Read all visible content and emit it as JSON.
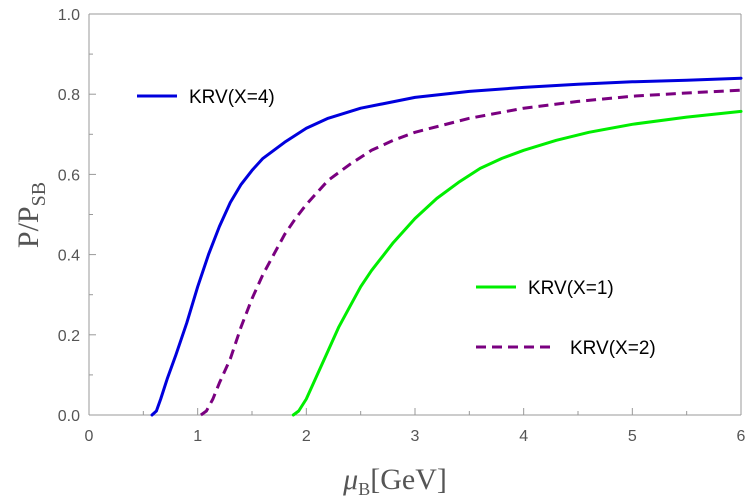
{
  "chart_data": {
    "type": "line",
    "xlabel": {
      "symbol": "μ",
      "sub": "B",
      "rest": "[GeV]"
    },
    "ylabel": {
      "main": "P/P",
      "sub": "SB"
    },
    "xlim": [
      0,
      6
    ],
    "ylim": [
      0,
      1
    ],
    "x_ticks": [
      "0",
      "1",
      "2",
      "3",
      "4",
      "5",
      "6"
    ],
    "y_ticks": [
      "0.0",
      "0.2",
      "0.4",
      "0.6",
      "0.8",
      "1.0"
    ],
    "grid": false,
    "series": [
      {
        "name": "KRV(X=4)",
        "color": "#0000dd",
        "dash": "solid",
        "points": [
          [
            0.58,
            0.0
          ],
          [
            0.62,
            0.01
          ],
          [
            0.66,
            0.04
          ],
          [
            0.72,
            0.09
          ],
          [
            0.8,
            0.15
          ],
          [
            0.9,
            0.23
          ],
          [
            1.0,
            0.32
          ],
          [
            1.1,
            0.4
          ],
          [
            1.2,
            0.47
          ],
          [
            1.3,
            0.53
          ],
          [
            1.4,
            0.575
          ],
          [
            1.5,
            0.61
          ],
          [
            1.6,
            0.64
          ],
          [
            1.8,
            0.68
          ],
          [
            2.0,
            0.715
          ],
          [
            2.2,
            0.74
          ],
          [
            2.5,
            0.765
          ],
          [
            3.0,
            0.792
          ],
          [
            3.5,
            0.807
          ],
          [
            4.0,
            0.817
          ],
          [
            4.5,
            0.825
          ],
          [
            5.0,
            0.831
          ],
          [
            5.5,
            0.835
          ],
          [
            6.0,
            0.84
          ]
        ]
      },
      {
        "name": "KRV(X=2)",
        "color": "#7a0080",
        "dash": "dashed",
        "points": [
          [
            1.03,
            0.0
          ],
          [
            1.08,
            0.01
          ],
          [
            1.14,
            0.04
          ],
          [
            1.2,
            0.08
          ],
          [
            1.3,
            0.14
          ],
          [
            1.4,
            0.22
          ],
          [
            1.5,
            0.29
          ],
          [
            1.6,
            0.35
          ],
          [
            1.7,
            0.4
          ],
          [
            1.8,
            0.45
          ],
          [
            1.9,
            0.49
          ],
          [
            2.0,
            0.525
          ],
          [
            2.2,
            0.585
          ],
          [
            2.4,
            0.625
          ],
          [
            2.6,
            0.66
          ],
          [
            2.8,
            0.685
          ],
          [
            3.0,
            0.705
          ],
          [
            3.5,
            0.74
          ],
          [
            4.0,
            0.765
          ],
          [
            4.5,
            0.782
          ],
          [
            5.0,
            0.795
          ],
          [
            5.5,
            0.803
          ],
          [
            6.0,
            0.81
          ]
        ]
      },
      {
        "name": "KRV(X=1)",
        "color": "#00ee00",
        "dash": "solid",
        "points": [
          [
            1.88,
            0.0
          ],
          [
            1.93,
            0.01
          ],
          [
            2.0,
            0.04
          ],
          [
            2.1,
            0.1
          ],
          [
            2.2,
            0.16
          ],
          [
            2.3,
            0.22
          ],
          [
            2.4,
            0.27
          ],
          [
            2.5,
            0.32
          ],
          [
            2.6,
            0.36
          ],
          [
            2.8,
            0.43
          ],
          [
            3.0,
            0.49
          ],
          [
            3.2,
            0.54
          ],
          [
            3.4,
            0.58
          ],
          [
            3.6,
            0.615
          ],
          [
            3.8,
            0.64
          ],
          [
            4.0,
            0.66
          ],
          [
            4.3,
            0.685
          ],
          [
            4.6,
            0.705
          ],
          [
            5.0,
            0.725
          ],
          [
            5.5,
            0.743
          ],
          [
            6.0,
            0.757
          ]
        ]
      }
    ],
    "legend": [
      {
        "label": "KRV(X=4)",
        "series": 0,
        "placement": "upper-left"
      },
      {
        "label": "KRV(X=1)",
        "series": 2,
        "placement": "right-middle"
      },
      {
        "label": "KRV(X=2)",
        "series": 1,
        "placement": "right-middle"
      }
    ]
  }
}
